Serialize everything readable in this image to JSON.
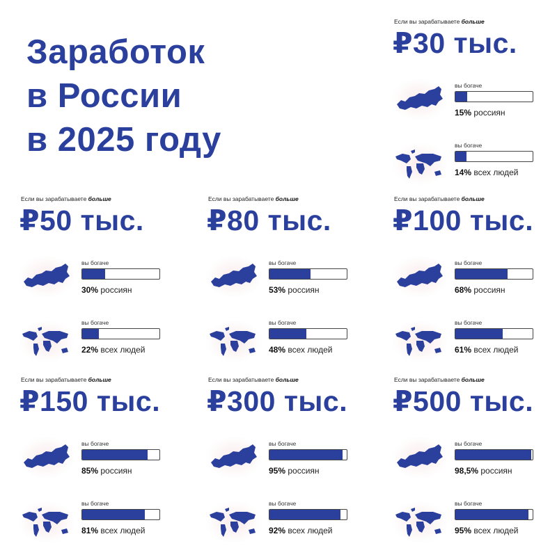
{
  "title": [
    "Заработок",
    "в России",
    "в 2025 году"
  ],
  "accent_color": "#2b3f9d",
  "lead_text": "Если вы зарабатываете",
  "lead_bold": "больше",
  "richer_label": "вы богаче",
  "russia_suffix": "россиян",
  "world_suffix": "всех людей",
  "cards": [
    {
      "amount": "₽30 тыс.",
      "russia_pct": "15%",
      "russia_value": 15,
      "world_pct": "14%",
      "world_value": 14
    },
    {
      "amount": "₽50 тыс.",
      "russia_pct": "30%",
      "russia_value": 30,
      "world_pct": "22%",
      "world_value": 22
    },
    {
      "amount": "₽80 тыс.",
      "russia_pct": "53%",
      "russia_value": 53,
      "world_pct": "48%",
      "world_value": 48
    },
    {
      "amount": "₽100 тыс.",
      "russia_pct": "68%",
      "russia_value": 68,
      "world_pct": "61%",
      "world_value": 61
    },
    {
      "amount": "₽150 тыс.",
      "russia_pct": "85%",
      "russia_value": 85,
      "world_pct": "81%",
      "world_value": 81
    },
    {
      "amount": "₽300 тыс.",
      "russia_pct": "95%",
      "russia_value": 95,
      "world_pct": "92%",
      "world_value": 92
    },
    {
      "amount": "₽500 тыс.",
      "russia_pct": "98,5%",
      "russia_value": 98.5,
      "world_pct": "95%",
      "world_value": 95
    }
  ]
}
